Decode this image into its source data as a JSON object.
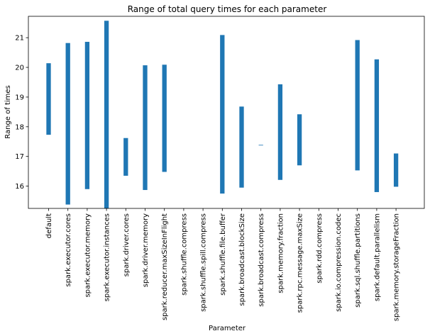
{
  "chart_data": {
    "type": "bar",
    "subtype": "floating-range",
    "title": "Range of total query times for each parameter",
    "xlabel": "Parameter",
    "ylabel": "Range of times",
    "ylim": [
      15.25,
      21.72
    ],
    "yticks": [
      16,
      17,
      18,
      19,
      20,
      21
    ],
    "grid": false,
    "color": "#1f77b4",
    "categories": [
      "default",
      "spark.executor.cores",
      "spark.executor.memory",
      "spark.executor.instances",
      "spark.driver.cores",
      "spark.driver.memory",
      "spark.reducer.maxSizeInFlight",
      "spark.shuffle.compress",
      "spark.shuffle.spill.compress",
      "spark.shuffle.file.buffer",
      "spark.broadcast.blockSize",
      "spark.broadcast.compress",
      "spark.memory.fraction",
      "spark.rpc.message.maxSize",
      "spark.rdd.compress",
      "spark.io.compression.codec",
      "spark.sql.shuffle.partitions",
      "spark.default.parallelism",
      "spark.memory.storageFraction"
    ],
    "ranges": [
      [
        17.73,
        20.14
      ],
      [
        15.38,
        20.82
      ],
      [
        15.9,
        20.86
      ],
      [
        15.25,
        21.57
      ],
      [
        16.35,
        17.62
      ],
      [
        15.87,
        20.07
      ],
      [
        16.48,
        20.09
      ],
      null,
      null,
      [
        15.75,
        21.09
      ],
      [
        15.95,
        18.68
      ],
      [
        17.37,
        17.39
      ],
      [
        16.21,
        19.43
      ],
      [
        16.7,
        18.42
      ],
      null,
      null,
      [
        16.53,
        20.92
      ],
      [
        15.8,
        20.27
      ],
      [
        15.98,
        17.1
      ]
    ]
  }
}
